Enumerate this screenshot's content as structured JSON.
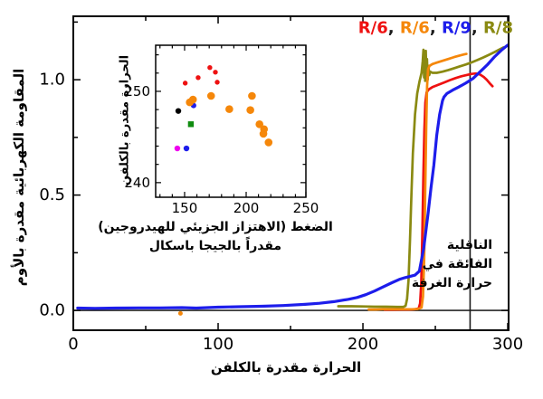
{
  "legend": {
    "separator": ", ",
    "items": [
      {
        "label": "R/6",
        "color": "#ee1111"
      },
      {
        "label": "R/6",
        "color": "#f5870a"
      },
      {
        "label": "R/9",
        "color": "#1d1deb"
      },
      {
        "label": "R/8",
        "color": "#8a8a12"
      }
    ]
  },
  "annotation": {
    "lines": [
      "الناقلية",
      "الفائقة في",
      "حرارة الغرفة"
    ],
    "marker_value_kelvin": 274
  },
  "chart_data": [
    {
      "type": "line",
      "title": "",
      "xlabel": "الحرارة مقدرة بالكلفن",
      "ylabel": "المقاومة الكهربائية مقدرة بالأوم",
      "xlim": [
        0,
        300.6
      ],
      "ylim": [
        -0.086,
        1.275
      ],
      "x_ticks": [
        0,
        100,
        200,
        300
      ],
      "x_tick_labels": [
        "0",
        "100",
        "200",
        "300"
      ],
      "x_minor_ticks": [
        50,
        150,
        250
      ],
      "y_ticks": [
        0,
        0.5,
        1.0
      ],
      "y_tick_labels": [
        "0.0",
        "0.5",
        "1.0"
      ],
      "y_minor_ticks": [
        0.25,
        0.75,
        1.25
      ],
      "zero_line": 0,
      "room_temp_line_x": 274,
      "grid": false,
      "series": [
        {
          "name": "R/8",
          "color": "#8a8a12",
          "width": 2.7,
          "points": [
            [
              183,
              0.018
            ],
            [
              192,
              0.018
            ],
            [
              200,
              0.017
            ],
            [
              208,
              0.016
            ],
            [
              216,
              0.016
            ],
            [
              224,
              0.015
            ],
            [
              228,
              0.015
            ],
            [
              229.5,
              0.02
            ],
            [
              230.5,
              0.05
            ],
            [
              231.5,
              0.13
            ],
            [
              232.5,
              0.3
            ],
            [
              233.5,
              0.5
            ],
            [
              234.5,
              0.68
            ],
            [
              236,
              0.85
            ],
            [
              237.5,
              0.94
            ],
            [
              239,
              0.99
            ],
            [
              240.5,
              1.03
            ],
            [
              241.3,
              1.08
            ],
            [
              241.8,
              1.13
            ],
            [
              242.2,
              1.01
            ],
            [
              242.6,
              1.11
            ],
            [
              243,
              0.995
            ],
            [
              243.4,
              1.125
            ],
            [
              243.8,
              1.02
            ],
            [
              244.2,
              1.09
            ],
            [
              244.7,
              1.0
            ],
            [
              245.2,
              1.06
            ],
            [
              245.8,
              1.02
            ],
            [
              246.5,
              1.035
            ],
            [
              248,
              1.03
            ],
            [
              251,
              1.03
            ],
            [
              255,
              1.035
            ],
            [
              259,
              1.042
            ],
            [
              263,
              1.05
            ],
            [
              267,
              1.058
            ],
            [
              271,
              1.066
            ],
            [
              275,
              1.075
            ],
            [
              279,
              1.085
            ],
            [
              283,
              1.096
            ],
            [
              287,
              1.108
            ],
            [
              291,
              1.12
            ],
            [
              294,
              1.13
            ],
            [
              297,
              1.14
            ]
          ]
        },
        {
          "name": "R/6 red",
          "color": "#ee1111",
          "width": 2.7,
          "points": [
            [
              215,
              0.003
            ],
            [
              221,
              0.003
            ],
            [
              227,
              0.004
            ],
            [
              232,
              0.004
            ],
            [
              236,
              0.005
            ],
            [
              238.5,
              0.008
            ],
            [
              239.5,
              0.03
            ],
            [
              240.3,
              0.12
            ],
            [
              241,
              0.32
            ],
            [
              241.7,
              0.58
            ],
            [
              242.4,
              0.78
            ],
            [
              243.1,
              0.9
            ],
            [
              244,
              0.945
            ],
            [
              245.5,
              0.958
            ],
            [
              248,
              0.968
            ],
            [
              252,
              0.978
            ],
            [
              256,
              0.988
            ],
            [
              260,
              0.998
            ],
            [
              264,
              1.007
            ],
            [
              268,
              1.015
            ],
            [
              272,
              1.021
            ],
            [
              275,
              1.025
            ],
            [
              278,
              1.027
            ],
            [
              281,
              1.022
            ],
            [
              283.5,
              1.012
            ],
            [
              285.5,
              1.0
            ],
            [
              287.5,
              0.985
            ],
            [
              289.5,
              0.972
            ]
          ]
        },
        {
          "name": "R/6 orange",
          "color": "#f5870a",
          "width": 2.7,
          "points": [
            [
              204,
              0.004
            ],
            [
              209,
              0.004
            ],
            [
              214,
              0.005
            ],
            [
              219,
              0.005
            ],
            [
              224,
              0.005
            ],
            [
              229,
              0.005
            ],
            [
              234,
              0.005
            ],
            [
              238,
              0.006
            ],
            [
              240.5,
              0.012
            ],
            [
              241.5,
              0.06
            ],
            [
              242.3,
              0.22
            ],
            [
              243,
              0.5
            ],
            [
              243.7,
              0.8
            ],
            [
              244.3,
              0.97
            ],
            [
              245,
              1.045
            ],
            [
              246,
              1.06
            ],
            [
              248,
              1.068
            ],
            [
              251,
              1.074
            ],
            [
              255,
              1.082
            ],
            [
              259,
              1.09
            ],
            [
              263,
              1.098
            ],
            [
              267,
              1.105
            ],
            [
              270,
              1.11
            ],
            [
              271.5,
              1.112
            ]
          ]
        },
        {
          "name": "R/9",
          "color": "#1d1deb",
          "width": 3.2,
          "points": [
            [
              3,
              0.01
            ],
            [
              15,
              0.009
            ],
            [
              30,
              0.01
            ],
            [
              45,
              0.011
            ],
            [
              60,
              0.011
            ],
            [
              75,
              0.012
            ],
            [
              85,
              0.01
            ],
            [
              100,
              0.014
            ],
            [
              115,
              0.016
            ],
            [
              130,
              0.018
            ],
            [
              145,
              0.021
            ],
            [
              160,
              0.026
            ],
            [
              170,
              0.031
            ],
            [
              180,
              0.038
            ],
            [
              190,
              0.048
            ],
            [
              196,
              0.056
            ],
            [
              202,
              0.068
            ],
            [
              208,
              0.084
            ],
            [
              214,
              0.102
            ],
            [
              220,
              0.12
            ],
            [
              225,
              0.134
            ],
            [
              229,
              0.142
            ],
            [
              233,
              0.148
            ],
            [
              236,
              0.153
            ],
            [
              239,
              0.17
            ],
            [
              242,
              0.27
            ],
            [
              245,
              0.42
            ],
            [
              247,
              0.53
            ],
            [
              249,
              0.63
            ],
            [
              251,
              0.76
            ],
            [
              253,
              0.85
            ],
            [
              255,
              0.91
            ],
            [
              256,
              0.925
            ],
            [
              258,
              0.94
            ],
            [
              262,
              0.955
            ],
            [
              266,
              0.968
            ],
            [
              271,
              0.985
            ],
            [
              276,
              1.005
            ],
            [
              281,
              1.035
            ],
            [
              286,
              1.065
            ],
            [
              291,
              1.1
            ],
            [
              296,
              1.13
            ],
            [
              300,
              1.15
            ]
          ]
        },
        {
          "name": "stray point",
          "color": "#f5870a",
          "marker": "dot",
          "size": 5,
          "points": [
            [
              74,
              -0.013
            ]
          ]
        }
      ]
    },
    {
      "type": "scatter",
      "xlabel_lines": [
        "الضغط (الاهتزاز الجزيئي للهيدروجين)",
        "مقدراً بالجيجا باسكال"
      ],
      "ylabel": "الحرارة مقدرة بالكلفن",
      "xlim": [
        126.5,
        248.5
      ],
      "ylim": [
        238.4,
        255.05
      ],
      "x_ticks": [
        150,
        200,
        250
      ],
      "x_tick_labels": [
        "150",
        "200",
        "250"
      ],
      "y_ticks": [
        240,
        250
      ],
      "y_tick_labels": [
        "240",
        "250"
      ],
      "x_minor_from": 130,
      "x_minor_to": 240,
      "x_minor_step": 10,
      "y_minor_from": 240,
      "y_minor_to": 254,
      "y_minor_step": 2,
      "series": [
        {
          "name": "blue hidden",
          "color": "#1d1deb",
          "marker": "circle",
          "size": 6,
          "points": [
            [
              157.3,
              248.45
            ]
          ]
        },
        {
          "name": "red",
          "color": "#ee1111",
          "marker": "circle",
          "size": 5.4,
          "points": [
            [
              150.5,
              250.9
            ],
            [
              161,
              251.5
            ],
            [
              170.5,
              252.6
            ],
            [
              175,
              252.1
            ],
            [
              176.5,
              251.0
            ]
          ]
        },
        {
          "name": "orange",
          "color": "#f5870a",
          "marker": "circle",
          "size": 8.6,
          "points": [
            [
              154.2,
              248.8
            ],
            [
              156.8,
              249.1
            ],
            [
              171.5,
              249.5
            ],
            [
              186.3,
              248.05
            ],
            [
              204.7,
              249.5
            ],
            [
              203.4,
              247.95
            ],
            [
              210.8,
              246.4
            ],
            [
              214.5,
              245.85
            ],
            [
              214.0,
              245.35
            ],
            [
              218.2,
              244.4
            ]
          ]
        },
        {
          "name": "black",
          "color": "#000000",
          "marker": "circle",
          "size": 6.4,
          "points": [
            [
              144.9,
              247.85
            ]
          ]
        },
        {
          "name": "green",
          "color": "#108c10",
          "marker": "square",
          "size": 6.4,
          "points": [
            [
              155.1,
              246.4
            ]
          ]
        },
        {
          "name": "magenta",
          "color": "#ee00ee",
          "marker": "circle",
          "size": 6.4,
          "points": [
            [
              144.1,
              243.75
            ]
          ]
        },
        {
          "name": "blue",
          "color": "#1d1deb",
          "marker": "circle",
          "size": 6.4,
          "points": [
            [
              151.5,
              243.75
            ]
          ]
        }
      ]
    }
  ]
}
